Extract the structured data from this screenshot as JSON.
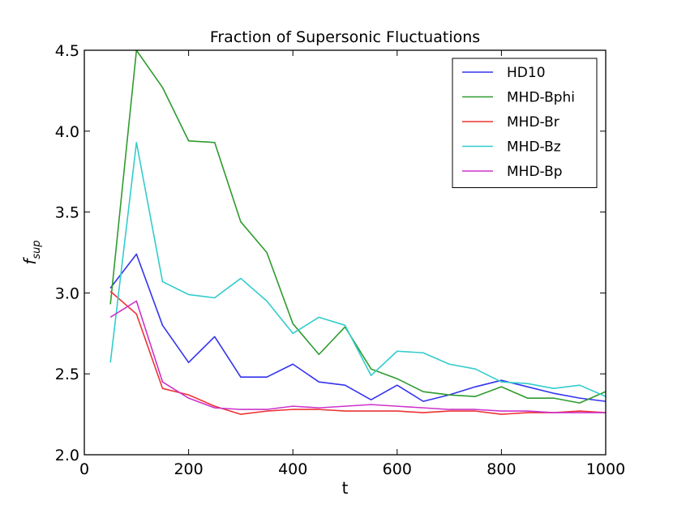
{
  "chart_data": {
    "type": "line",
    "title": "Fraction of Supersonic Fluctuations",
    "xlabel": "t",
    "ylabel_base": "f",
    "ylabel_sub": "sup",
    "xlim": [
      0,
      1000
    ],
    "ylim": [
      2.0,
      4.5
    ],
    "xticks": [
      "0",
      "200",
      "400",
      "600",
      "800",
      "1000"
    ],
    "yticks": [
      "2.0",
      "2.5",
      "3.0",
      "3.5",
      "4.0",
      "4.5"
    ],
    "legend_position": "top-right",
    "grid": false,
    "x": [
      50,
      100,
      150,
      200,
      250,
      300,
      350,
      400,
      450,
      500,
      550,
      600,
      650,
      700,
      750,
      800,
      850,
      900,
      950,
      1000
    ],
    "series": [
      {
        "name": "HD10",
        "color": "#3333ee",
        "values": [
          3.03,
          3.24,
          2.8,
          2.57,
          2.73,
          2.48,
          2.48,
          2.56,
          2.45,
          2.43,
          2.34,
          2.43,
          2.33,
          2.37,
          2.42,
          2.46,
          2.42,
          2.38,
          2.35,
          2.33
        ]
      },
      {
        "name": "MHD-Bphi",
        "color": "#2e9b2e",
        "values": [
          2.93,
          4.5,
          4.27,
          3.94,
          3.93,
          3.44,
          3.25,
          2.81,
          2.62,
          2.79,
          2.53,
          2.47,
          2.39,
          2.37,
          2.36,
          2.42,
          2.35,
          2.35,
          2.32,
          2.39
        ]
      },
      {
        "name": "MHD-Br",
        "color": "#ee3333",
        "values": [
          3.01,
          2.87,
          2.41,
          2.37,
          2.3,
          2.25,
          2.27,
          2.28,
          2.28,
          2.27,
          2.27,
          2.27,
          2.26,
          2.27,
          2.27,
          2.25,
          2.26,
          2.26,
          2.27,
          2.26
        ]
      },
      {
        "name": "MHD-Bz",
        "color": "#33cccc",
        "values": [
          2.57,
          3.93,
          3.07,
          2.99,
          2.97,
          3.09,
          2.95,
          2.75,
          2.85,
          2.8,
          2.49,
          2.64,
          2.63,
          2.56,
          2.53,
          2.45,
          2.44,
          2.41,
          2.43,
          2.36
        ]
      },
      {
        "name": "MHD-Bp",
        "color": "#cc33cc",
        "values": [
          2.85,
          2.95,
          2.45,
          2.35,
          2.29,
          2.28,
          2.28,
          2.3,
          2.29,
          2.3,
          2.31,
          2.3,
          2.29,
          2.28,
          2.28,
          2.27,
          2.27,
          2.26,
          2.26,
          2.26
        ]
      }
    ]
  }
}
